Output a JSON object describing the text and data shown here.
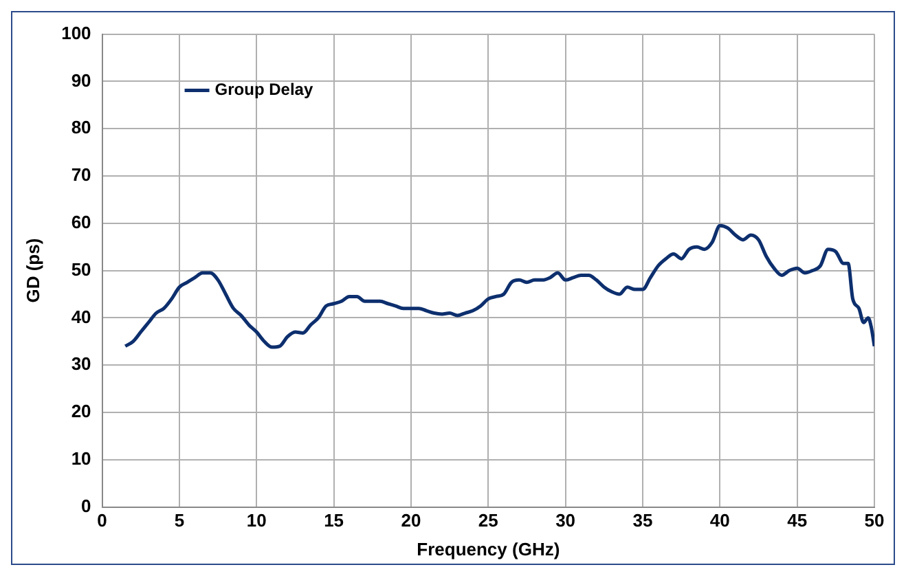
{
  "chart_data": {
    "type": "line",
    "xlabel": "Frequency (GHz)",
    "ylabel": "GD (ps)",
    "xlim": [
      0,
      50
    ],
    "xticks": [
      0,
      5,
      10,
      15,
      20,
      25,
      30,
      35,
      40,
      45,
      50
    ],
    "ylim": [
      0,
      100
    ],
    "yticks": [
      0,
      10,
      20,
      30,
      40,
      50,
      60,
      70,
      80,
      90,
      100
    ],
    "grid": true,
    "legend": "top left",
    "marker": "none",
    "line_style": "solid",
    "series": [
      {
        "name": "Group Delay",
        "color": "#0d2f6e",
        "x": [
          1.5,
          2,
          2.5,
          3,
          3.5,
          4,
          4.5,
          5,
          5.5,
          6,
          6.5,
          7,
          7.5,
          8,
          8.5,
          9,
          9.5,
          10,
          10.5,
          11,
          11.5,
          12,
          12.5,
          13,
          13.5,
          14,
          14.5,
          15,
          15.5,
          16,
          16.5,
          17,
          17.5,
          18,
          18.5,
          19,
          19.5,
          20,
          20.5,
          21,
          21.5,
          22,
          22.5,
          23,
          23.5,
          24,
          24.5,
          25,
          25.5,
          26,
          26.5,
          27,
          27.5,
          28,
          28.5,
          29,
          29.5,
          30,
          30.5,
          31,
          31.5,
          32,
          32.5,
          33,
          33.5,
          34,
          34.5,
          35,
          35.5,
          36,
          36.5,
          37,
          37.5,
          38,
          38.5,
          39,
          39.5,
          40,
          40.5,
          41,
          41.5,
          42,
          42.5,
          43,
          43.5,
          44,
          44.5,
          45,
          45.5,
          46,
          46.5,
          47,
          47.5,
          48,
          48.3,
          48.6,
          49,
          49.3,
          49.6,
          49.8,
          50
        ],
        "values": [
          34,
          35,
          37,
          39,
          41,
          42,
          44,
          46.5,
          47.5,
          48.5,
          49.5,
          49.5,
          48,
          45,
          42,
          40.5,
          38.5,
          37,
          35,
          33.8,
          34,
          36,
          37,
          36.8,
          38.5,
          40,
          42.5,
          43,
          43.5,
          44.5,
          44.5,
          43.5,
          43.5,
          43.5,
          43,
          42.5,
          42,
          42,
          42,
          41.5,
          41,
          40.8,
          41,
          40.5,
          41,
          41.5,
          42.5,
          44,
          44.5,
          45,
          47.5,
          48,
          47.5,
          48,
          48,
          48.5,
          49.5,
          48,
          48.5,
          49,
          49,
          48,
          46.5,
          45.5,
          45,
          46.5,
          46,
          46,
          48.5,
          51,
          52.5,
          53.5,
          52.5,
          54.5,
          55,
          54.5,
          56,
          59.5,
          59,
          57.5,
          56.5,
          57.5,
          56.5,
          53,
          50.5,
          49,
          50,
          50.5,
          49.5,
          50,
          51,
          54.5,
          54,
          51.5,
          51.5,
          44,
          42,
          39,
          40,
          38,
          34
        ]
      }
    ]
  }
}
